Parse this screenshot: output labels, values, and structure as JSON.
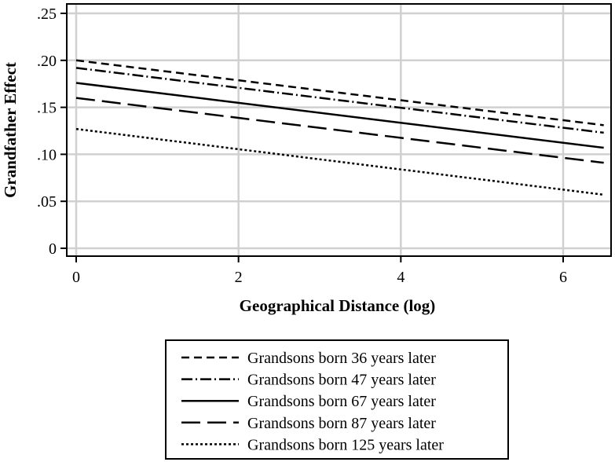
{
  "chart_data": {
    "type": "line",
    "xlabel": "Geographical Distance (log)",
    "ylabel": "Grandfather Effect",
    "xlim": [
      0,
      6.5
    ],
    "ylim": [
      0,
      0.25
    ],
    "x_ticks": [
      0,
      2,
      4,
      6
    ],
    "x_tick_labels": [
      "0",
      "2",
      "4",
      "6"
    ],
    "y_ticks": [
      0,
      0.05,
      0.1,
      0.15,
      0.2,
      0.25
    ],
    "y_tick_labels": [
      "0",
      ".05",
      ".10",
      ".15",
      ".20",
      ".25"
    ],
    "grid": true,
    "legend_position": "bottom",
    "series": [
      {
        "name": "Grandsons born 36 years later",
        "dash": "dashed",
        "x": [
          0,
          6.5
        ],
        "y": [
          0.2,
          0.131
        ]
      },
      {
        "name": "Grandsons born 47 years later",
        "dash": "dash-dot",
        "x": [
          0,
          6.5
        ],
        "y": [
          0.192,
          0.123
        ]
      },
      {
        "name": "Grandsons born 67 years later",
        "dash": "solid",
        "x": [
          0,
          6.5
        ],
        "y": [
          0.176,
          0.107
        ]
      },
      {
        "name": "Grandsons born 87 years later",
        "dash": "long-dash",
        "x": [
          0,
          6.5
        ],
        "y": [
          0.16,
          0.091
        ]
      },
      {
        "name": "Grandsons born 125 years later",
        "dash": "dotted",
        "x": [
          0,
          6.5
        ],
        "y": [
          0.127,
          0.057
        ]
      }
    ]
  }
}
